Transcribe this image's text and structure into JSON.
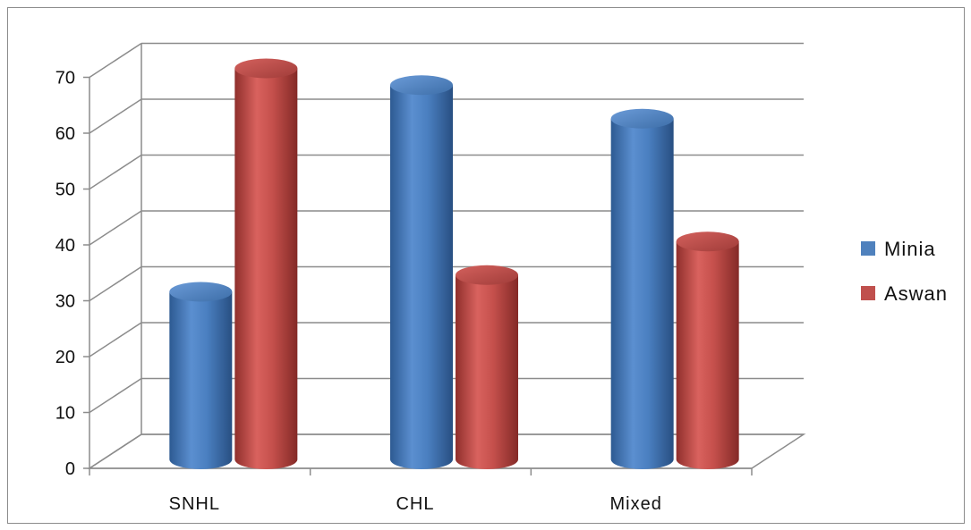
{
  "chart_data": {
    "type": "bar",
    "style": "3d-cylinder",
    "categories": [
      "SNHL",
      "CHL",
      "Mixed"
    ],
    "series": [
      {
        "name": "Minia",
        "values": [
          30,
          67,
          61
        ],
        "color": "#4f81bd"
      },
      {
        "name": "Aswan",
        "values": [
          70,
          33,
          39
        ],
        "color": "#c0504d"
      }
    ],
    "yticks": [
      "0",
      "10",
      "20",
      "30",
      "40",
      "50",
      "60",
      "70"
    ],
    "ylim": [
      0,
      70
    ],
    "grid": true,
    "legend": "right",
    "title": "",
    "xlabel": "",
    "ylabel": ""
  }
}
